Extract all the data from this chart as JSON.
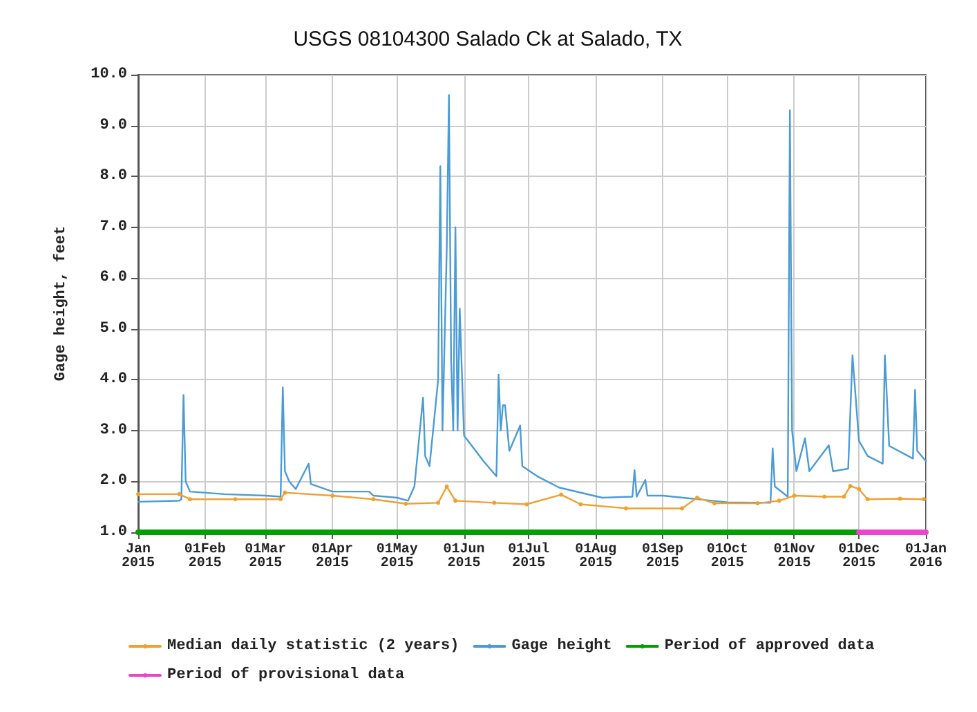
{
  "chart_data": {
    "type": "line",
    "title": "USGS 08104300 Salado Ck at Salado, TX",
    "ylabel": "Gage height, feet",
    "xlim": [
      "2015-01-01",
      "2016-01-01"
    ],
    "xticks": [
      {
        "value": "2015-01-01",
        "label": "Jan\n2015"
      },
      {
        "value": "2015-02-01",
        "label": "01Feb\n2015"
      },
      {
        "value": "2015-03-01",
        "label": "01Mar\n2015"
      },
      {
        "value": "2015-04-01",
        "label": "01Apr\n2015"
      },
      {
        "value": "2015-05-01",
        "label": "01May\n2015"
      },
      {
        "value": "2015-06-01",
        "label": "01Jun\n2015"
      },
      {
        "value": "2015-07-01",
        "label": "01Jul\n2015"
      },
      {
        "value": "2015-08-01",
        "label": "01Aug\n2015"
      },
      {
        "value": "2015-09-01",
        "label": "01Sep\n2015"
      },
      {
        "value": "2015-10-01",
        "label": "01Oct\n2015"
      },
      {
        "value": "2015-11-01",
        "label": "01Nov\n2015"
      },
      {
        "value": "2015-12-01",
        "label": "01Dec\n2015"
      },
      {
        "value": "2016-01-01",
        "label": "01Jan\n2016"
      }
    ],
    "ylim": [
      1,
      10
    ],
    "yticks": [
      {
        "value": 1,
        "label": "1.0"
      },
      {
        "value": 2,
        "label": "2.0"
      },
      {
        "value": 3,
        "label": "3.0"
      },
      {
        "value": 4,
        "label": "4.0"
      },
      {
        "value": 5,
        "label": "5.0"
      },
      {
        "value": 6,
        "label": "6.0"
      },
      {
        "value": 7,
        "label": "7.0"
      },
      {
        "value": 8,
        "label": "8.0"
      },
      {
        "value": 9,
        "label": "9.0"
      },
      {
        "value": 10,
        "label": "10.0"
      }
    ],
    "grid": true,
    "legend": "bottom",
    "marker": "none",
    "line_style": "solid",
    "series": [
      {
        "name": "Median daily statistic (2 years)",
        "color": "#f0a030",
        "marker": "circle",
        "x": [
          "2015-01-01",
          "2015-01-20",
          "2015-01-25",
          "2015-02-15",
          "2015-03-08",
          "2015-03-10",
          "2015-04-01",
          "2015-04-20",
          "2015-05-05",
          "2015-05-20",
          "2015-05-24",
          "2015-05-28",
          "2015-06-15",
          "2015-06-30",
          "2015-07-16",
          "2015-07-25",
          "2015-08-15",
          "2015-09-10",
          "2015-09-17",
          "2015-09-25",
          "2015-10-15",
          "2015-10-25",
          "2015-11-01",
          "2015-11-15",
          "2015-11-24",
          "2015-11-27",
          "2015-12-01",
          "2015-12-05",
          "2015-12-20",
          "2015-12-31"
        ],
        "values": [
          1.75,
          1.75,
          1.65,
          1.65,
          1.65,
          1.78,
          1.72,
          1.65,
          1.56,
          1.58,
          1.9,
          1.62,
          1.58,
          1.55,
          1.74,
          1.55,
          1.47,
          1.47,
          1.68,
          1.57,
          1.57,
          1.62,
          1.72,
          1.7,
          1.7,
          1.91,
          1.85,
          1.65,
          1.66,
          1.65
        ]
      },
      {
        "name": "Gage height",
        "color": "#4a9bd6",
        "x": [
          "2015-01-01",
          "2015-01-20",
          "2015-01-21",
          "2015-01-22",
          "2015-01-23",
          "2015-01-25",
          "2015-02-10",
          "2015-03-01",
          "2015-03-08",
          "2015-03-09",
          "2015-03-10",
          "2015-03-12",
          "2015-03-15",
          "2015-03-21",
          "2015-03-22",
          "2015-04-01",
          "2015-04-18",
          "2015-04-20",
          "2015-05-01",
          "2015-05-06",
          "2015-05-09",
          "2015-05-13",
          "2015-05-14",
          "2015-05-16",
          "2015-05-20",
          "2015-05-21",
          "2015-05-22",
          "2015-05-24",
          "2015-05-25",
          "2015-05-26",
          "2015-05-27",
          "2015-05-28",
          "2015-05-29",
          "2015-05-30",
          "2015-06-01",
          "2015-06-10",
          "2015-06-16",
          "2015-06-17",
          "2015-06-18",
          "2015-06-19",
          "2015-06-20",
          "2015-06-22",
          "2015-06-27",
          "2015-06-28",
          "2015-07-05",
          "2015-07-15",
          "2015-08-04",
          "2015-08-18",
          "2015-08-19",
          "2015-08-20",
          "2015-08-24",
          "2015-08-25",
          "2015-09-01",
          "2015-10-01",
          "2015-10-21",
          "2015-10-22",
          "2015-10-23",
          "2015-10-29",
          "2015-10-30",
          "2015-10-31",
          "2015-11-02",
          "2015-11-06",
          "2015-11-08",
          "2015-11-17",
          "2015-11-19",
          "2015-11-26",
          "2015-11-28",
          "2015-12-01",
          "2015-12-05",
          "2015-12-12",
          "2015-12-13",
          "2015-12-15",
          "2015-12-26",
          "2015-12-27",
          "2015-12-28",
          "2016-01-01"
        ],
        "values": [
          1.6,
          1.62,
          1.65,
          3.7,
          2.0,
          1.8,
          1.75,
          1.72,
          1.7,
          3.85,
          2.2,
          2.0,
          1.85,
          2.35,
          1.95,
          1.8,
          1.8,
          1.72,
          1.68,
          1.62,
          1.9,
          3.65,
          2.5,
          2.3,
          4.0,
          8.2,
          3.0,
          6.6,
          9.6,
          4.4,
          3.0,
          7.0,
          3.0,
          5.4,
          2.9,
          2.4,
          2.1,
          4.1,
          3.0,
          3.5,
          3.5,
          2.6,
          3.1,
          2.3,
          2.1,
          1.88,
          1.68,
          1.7,
          2.22,
          1.7,
          2.03,
          1.72,
          1.72,
          1.59,
          1.58,
          2.65,
          1.9,
          1.7,
          9.3,
          3.0,
          2.2,
          2.85,
          2.2,
          2.71,
          2.2,
          2.25,
          4.48,
          2.8,
          2.5,
          2.35,
          4.48,
          2.7,
          2.45,
          3.8,
          2.6,
          2.4
        ]
      },
      {
        "name": "Period of approved data",
        "color": "#00a000",
        "x": [
          "2015-01-01",
          "2015-12-01"
        ],
        "values": [
          1,
          1
        ]
      },
      {
        "name": "Period of provisional data",
        "color": "#ee44cc",
        "x": [
          "2015-12-01",
          "2016-01-01"
        ],
        "values": [
          1,
          1
        ]
      }
    ]
  }
}
